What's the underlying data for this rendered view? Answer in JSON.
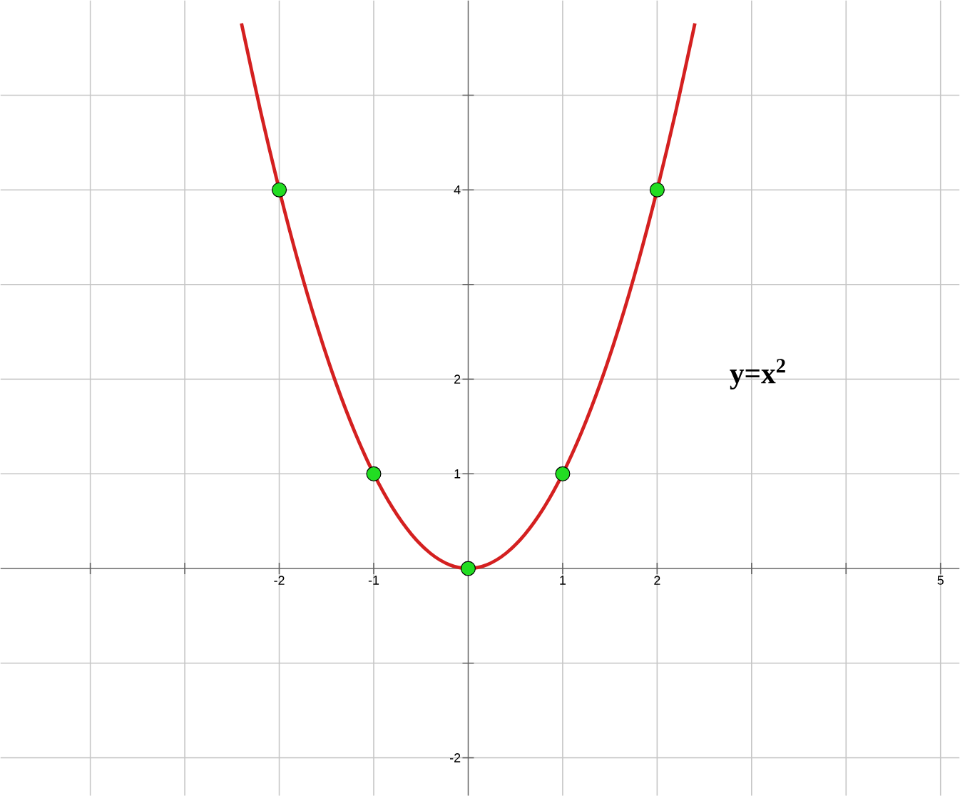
{
  "chart_data": {
    "type": "line",
    "annotations": [
      "y=x$^{2}$"
    ],
    "xlim": [
      -4.95,
      5.2
    ],
    "ylim": [
      -2.4,
      6
    ],
    "xticks": [
      {
        "value": -4,
        "label": null
      },
      {
        "value": -3,
        "label": null
      },
      -2,
      -1,
      1,
      2,
      {
        "value": 3,
        "label": null
      },
      {
        "value": 4,
        "label": null
      },
      5
    ],
    "yticks": [
      -2,
      {
        "value": -1,
        "label": null
      },
      1,
      2,
      {
        "value": 3,
        "label": null
      },
      4,
      {
        "value": 5,
        "label": null
      }
    ],
    "grid": true,
    "series": [
      {
        "type": "line",
        "color": "#d42020",
        "marker": "none",
        "line_style": "solid",
        "x": [
          -2.4,
          -2.2,
          -2.0,
          -1.8,
          -1.6,
          -1.4,
          -1.2,
          -1.0,
          -0.8,
          -0.6,
          -0.4,
          -0.2,
          0,
          0.2,
          0.4,
          0.6,
          0.8,
          1.0,
          1.2,
          1.4,
          1.6,
          1.8,
          2.0,
          2.2,
          2.4
        ],
        "values": [
          5.76,
          4.84,
          4.0,
          3.24,
          2.56,
          1.96,
          1.44,
          1.0,
          0.64,
          0.36,
          0.16,
          0.04,
          0,
          0.04,
          0.16,
          0.36,
          0.64,
          1.0,
          1.44,
          1.96,
          2.56,
          3.24,
          4.0,
          4.84,
          5.76
        ]
      },
      {
        "type": "scatter",
        "color": "#22dd22",
        "marker": "circle",
        "x": [
          -2,
          -1,
          0,
          1,
          2
        ],
        "values": [
          4,
          1,
          0,
          1,
          4
        ]
      }
    ]
  }
}
